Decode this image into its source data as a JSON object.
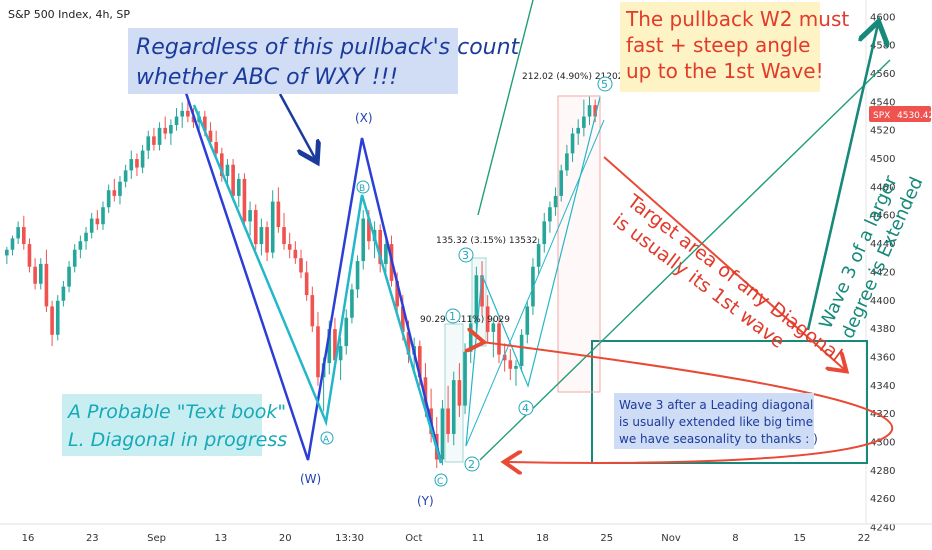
{
  "header": {
    "symbol_line": "S&P 500 Index, 4h, SP"
  },
  "colors": {
    "up": "#26a69a",
    "down": "#ef5350",
    "price_tag": "#ef5350",
    "wave_line": "#2b3fd6",
    "wave_line2": "#22b7c9",
    "channel": "#1f9d7a",
    "arrow_red": "#e84a36",
    "box": "#16897a"
  },
  "price_tag": "4530.42",
  "price_tag_symbol": "SPX",
  "chart_data": {
    "type": "candlestick",
    "title": "S&P 500 Index, 4h, SP",
    "xlabel": "",
    "ylabel": "",
    "x_ticks": [
      "16",
      "23",
      "Sep",
      "13",
      "20",
      "13:30",
      "Oct",
      "11",
      "18",
      "25",
      "Nov",
      "8",
      "15",
      "22"
    ],
    "y_ticks": [
      4240,
      4260,
      4280,
      4300,
      4320,
      4340,
      4360,
      4380,
      4400,
      4420,
      4440,
      4460,
      4480,
      4500,
      4520,
      4540,
      4560,
      4580,
      4600
    ],
    "ylim": [
      4234,
      4608
    ],
    "last_price": 4530.42,
    "candles": [
      {
        "o": 4432,
        "h": 4438,
        "l": 4426,
        "c": 4436
      },
      {
        "o": 4436,
        "h": 4446,
        "l": 4432,
        "c": 4444
      },
      {
        "o": 4444,
        "h": 4456,
        "l": 4440,
        "c": 4452
      },
      {
        "o": 4452,
        "h": 4460,
        "l": 4436,
        "c": 4440
      },
      {
        "o": 4440,
        "h": 4444,
        "l": 4420,
        "c": 4424
      },
      {
        "o": 4424,
        "h": 4430,
        "l": 4408,
        "c": 4412
      },
      {
        "o": 4412,
        "h": 4430,
        "l": 4408,
        "c": 4426
      },
      {
        "o": 4426,
        "h": 4436,
        "l": 4392,
        "c": 4396
      },
      {
        "o": 4396,
        "h": 4400,
        "l": 4368,
        "c": 4376
      },
      {
        "o": 4376,
        "h": 4404,
        "l": 4372,
        "c": 4400
      },
      {
        "o": 4400,
        "h": 4414,
        "l": 4396,
        "c": 4410
      },
      {
        "o": 4410,
        "h": 4428,
        "l": 4406,
        "c": 4424
      },
      {
        "o": 4424,
        "h": 4440,
        "l": 4420,
        "c": 4436
      },
      {
        "o": 4436,
        "h": 4446,
        "l": 4430,
        "c": 4442
      },
      {
        "o": 4442,
        "h": 4452,
        "l": 4436,
        "c": 4448
      },
      {
        "o": 4448,
        "h": 4462,
        "l": 4444,
        "c": 4458
      },
      {
        "o": 4458,
        "h": 4464,
        "l": 4450,
        "c": 4454
      },
      {
        "o": 4454,
        "h": 4470,
        "l": 4450,
        "c": 4466
      },
      {
        "o": 4466,
        "h": 4482,
        "l": 4462,
        "c": 4478
      },
      {
        "o": 4478,
        "h": 4486,
        "l": 4470,
        "c": 4474
      },
      {
        "o": 4474,
        "h": 4488,
        "l": 4468,
        "c": 4484
      },
      {
        "o": 4484,
        "h": 4496,
        "l": 4480,
        "c": 4492
      },
      {
        "o": 4492,
        "h": 4506,
        "l": 4486,
        "c": 4500
      },
      {
        "o": 4500,
        "h": 4504,
        "l": 4488,
        "c": 4494
      },
      {
        "o": 4494,
        "h": 4510,
        "l": 4490,
        "c": 4506
      },
      {
        "o": 4506,
        "h": 4520,
        "l": 4500,
        "c": 4516
      },
      {
        "o": 4516,
        "h": 4522,
        "l": 4506,
        "c": 4510
      },
      {
        "o": 4510,
        "h": 4526,
        "l": 4506,
        "c": 4522
      },
      {
        "o": 4522,
        "h": 4530,
        "l": 4514,
        "c": 4518
      },
      {
        "o": 4518,
        "h": 4528,
        "l": 4510,
        "c": 4524
      },
      {
        "o": 4524,
        "h": 4536,
        "l": 4520,
        "c": 4530
      },
      {
        "o": 4530,
        "h": 4540,
        "l": 4522,
        "c": 4534
      },
      {
        "o": 4534,
        "h": 4545,
        "l": 4526,
        "c": 4530
      },
      {
        "o": 4530,
        "h": 4536,
        "l": 4522,
        "c": 4526
      },
      {
        "o": 4526,
        "h": 4534,
        "l": 4518,
        "c": 4530
      },
      {
        "o": 4530,
        "h": 4534,
        "l": 4516,
        "c": 4520
      },
      {
        "o": 4520,
        "h": 4526,
        "l": 4508,
        "c": 4512
      },
      {
        "o": 4512,
        "h": 4520,
        "l": 4500,
        "c": 4504
      },
      {
        "o": 4504,
        "h": 4508,
        "l": 4484,
        "c": 4488
      },
      {
        "o": 4488,
        "h": 4500,
        "l": 4482,
        "c": 4496
      },
      {
        "o": 4496,
        "h": 4500,
        "l": 4470,
        "c": 4474
      },
      {
        "o": 4474,
        "h": 4490,
        "l": 4466,
        "c": 4486
      },
      {
        "o": 4486,
        "h": 4490,
        "l": 4452,
        "c": 4456
      },
      {
        "o": 4456,
        "h": 4470,
        "l": 4446,
        "c": 4464
      },
      {
        "o": 4464,
        "h": 4468,
        "l": 4436,
        "c": 4440
      },
      {
        "o": 4440,
        "h": 4458,
        "l": 4432,
        "c": 4452
      },
      {
        "o": 4452,
        "h": 4456,
        "l": 4428,
        "c": 4434
      },
      {
        "o": 4434,
        "h": 4478,
        "l": 4430,
        "c": 4470
      },
      {
        "o": 4470,
        "h": 4480,
        "l": 4448,
        "c": 4452
      },
      {
        "o": 4452,
        "h": 4462,
        "l": 4436,
        "c": 4440
      },
      {
        "o": 4440,
        "h": 4448,
        "l": 4430,
        "c": 4436
      },
      {
        "o": 4436,
        "h": 4442,
        "l": 4426,
        "c": 4430
      },
      {
        "o": 4430,
        "h": 4436,
        "l": 4416,
        "c": 4420
      },
      {
        "o": 4420,
        "h": 4428,
        "l": 4400,
        "c": 4404
      },
      {
        "o": 4404,
        "h": 4410,
        "l": 4378,
        "c": 4382
      },
      {
        "o": 4382,
        "h": 4392,
        "l": 4340,
        "c": 4346
      },
      {
        "o": 4346,
        "h": 4360,
        "l": 4322,
        "c": 4356
      },
      {
        "o": 4356,
        "h": 4386,
        "l": 4348,
        "c": 4380
      },
      {
        "o": 4380,
        "h": 4388,
        "l": 4352,
        "c": 4358
      },
      {
        "o": 4358,
        "h": 4374,
        "l": 4344,
        "c": 4368
      },
      {
        "o": 4368,
        "h": 4394,
        "l": 4362,
        "c": 4388
      },
      {
        "o": 4388,
        "h": 4412,
        "l": 4384,
        "c": 4408
      },
      {
        "o": 4408,
        "h": 4432,
        "l": 4402,
        "c": 4428
      },
      {
        "o": 4428,
        "h": 4464,
        "l": 4422,
        "c": 4458
      },
      {
        "o": 4458,
        "h": 4464,
        "l": 4436,
        "c": 4442
      },
      {
        "o": 4442,
        "h": 4456,
        "l": 4430,
        "c": 4450
      },
      {
        "o": 4450,
        "h": 4454,
        "l": 4420,
        "c": 4426
      },
      {
        "o": 4426,
        "h": 4444,
        "l": 4420,
        "c": 4440
      },
      {
        "o": 4440,
        "h": 4446,
        "l": 4410,
        "c": 4414
      },
      {
        "o": 4414,
        "h": 4420,
        "l": 4390,
        "c": 4396
      },
      {
        "o": 4396,
        "h": 4404,
        "l": 4372,
        "c": 4378
      },
      {
        "o": 4378,
        "h": 4386,
        "l": 4356,
        "c": 4362
      },
      {
        "o": 4362,
        "h": 4374,
        "l": 4348,
        "c": 4368
      },
      {
        "o": 4368,
        "h": 4372,
        "l": 4340,
        "c": 4346
      },
      {
        "o": 4346,
        "h": 4356,
        "l": 4318,
        "c": 4324
      },
      {
        "o": 4324,
        "h": 4338,
        "l": 4300,
        "c": 4306
      },
      {
        "o": 4306,
        "h": 4318,
        "l": 4282,
        "c": 4288
      },
      {
        "o": 4288,
        "h": 4330,
        "l": 4284,
        "c": 4324
      },
      {
        "o": 4324,
        "h": 4340,
        "l": 4300,
        "c": 4306
      },
      {
        "o": 4306,
        "h": 4350,
        "l": 4298,
        "c": 4344
      },
      {
        "o": 4344,
        "h": 4356,
        "l": 4318,
        "c": 4326
      },
      {
        "o": 4326,
        "h": 4370,
        "l": 4320,
        "c": 4364
      },
      {
        "o": 4364,
        "h": 4390,
        "l": 4356,
        "c": 4384
      },
      {
        "o": 4384,
        "h": 4424,
        "l": 4376,
        "c": 4418
      },
      {
        "o": 4418,
        "h": 4428,
        "l": 4390,
        "c": 4396
      },
      {
        "o": 4396,
        "h": 4404,
        "l": 4370,
        "c": 4378
      },
      {
        "o": 4378,
        "h": 4388,
        "l": 4360,
        "c": 4384
      },
      {
        "o": 4384,
        "h": 4390,
        "l": 4356,
        "c": 4362
      },
      {
        "o": 4362,
        "h": 4370,
        "l": 4350,
        "c": 4358
      },
      {
        "o": 4358,
        "h": 4366,
        "l": 4344,
        "c": 4352
      },
      {
        "o": 4352,
        "h": 4358,
        "l": 4340,
        "c": 4354
      },
      {
        "o": 4354,
        "h": 4380,
        "l": 4350,
        "c": 4376
      },
      {
        "o": 4376,
        "h": 4400,
        "l": 4370,
        "c": 4396
      },
      {
        "o": 4396,
        "h": 4430,
        "l": 4390,
        "c": 4424
      },
      {
        "o": 4424,
        "h": 4444,
        "l": 4418,
        "c": 4440
      },
      {
        "o": 4440,
        "h": 4462,
        "l": 4434,
        "c": 4456
      },
      {
        "o": 4456,
        "h": 4470,
        "l": 4448,
        "c": 4466
      },
      {
        "o": 4466,
        "h": 4480,
        "l": 4460,
        "c": 4474
      },
      {
        "o": 4474,
        "h": 4496,
        "l": 4470,
        "c": 4492
      },
      {
        "o": 4492,
        "h": 4510,
        "l": 4488,
        "c": 4504
      },
      {
        "o": 4504,
        "h": 4522,
        "l": 4498,
        "c": 4518
      },
      {
        "o": 4518,
        "h": 4528,
        "l": 4510,
        "c": 4522
      },
      {
        "o": 4522,
        "h": 4542,
        "l": 4516,
        "c": 4530
      },
      {
        "o": 4530,
        "h": 4544,
        "l": 4524,
        "c": 4538
      },
      {
        "o": 4538,
        "h": 4542,
        "l": 4526,
        "c": 4530
      }
    ],
    "measurements": [
      {
        "text": "212.02 (4.90%) 21202"
      },
      {
        "text": "135.32 (3.15%) 13532"
      },
      {
        "text": "90.29 (2.11%) 9029"
      }
    ],
    "wave_labels": [
      "(X)",
      "(W)",
      "(Y)"
    ],
    "count_labels": [
      "5",
      "3",
      "4",
      "1",
      "2",
      "B",
      "A",
      "C"
    ],
    "annotations": {
      "top_left": "Regardless of this pullback's count whether ABC of WXY !!!",
      "top_right": "The pullback W2 must fast + steep angle up to the 1st Wave!",
      "bottom_left": "A Probable \"Text book\" L. Diagonal in progress",
      "target": "Target area of any Diagonal is usually its 1st wave",
      "wave3": "Wave 3 of a larger degree is Extended",
      "box": "Wave 3 after a Leading diagonal is usually extended like big time we have seasonality to thanks : )"
    }
  }
}
